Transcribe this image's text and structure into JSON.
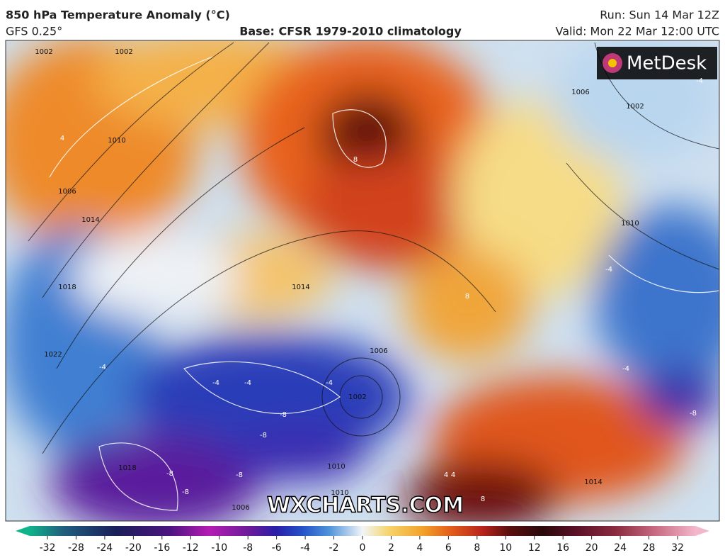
{
  "header": {
    "title": "850 hPa Temperature Anomaly (°C)",
    "model": "GFS 0.25°",
    "base": "Base: CFSR 1979-2010 climatology",
    "run": "Run: Sun 14 Mar 12Z",
    "valid": "Valid: Mon 22 Mar 12:00 UTC"
  },
  "logo": "MetDesk",
  "watermark": "WXCHARTS.COM",
  "map": {
    "isobar_labels": [
      1002,
      1002,
      1010,
      1006,
      1014,
      1018,
      1022,
      1006,
      1002,
      1002,
      1010,
      1014,
      1006,
      1018,
      1010,
      1006,
      1014,
      1010
    ],
    "anomaly_labels": [
      4,
      8,
      8,
      -4,
      -4,
      -4,
      -4,
      -4,
      -8,
      -8,
      -8,
      -8,
      -8,
      -4,
      -4,
      -8,
      4,
      4,
      8
    ]
  },
  "colorbar": {
    "ticks": [
      -32,
      -28,
      -24,
      -20,
      -16,
      -12,
      -10,
      -8,
      -6,
      -4,
      -2,
      0,
      2,
      4,
      6,
      8,
      10,
      12,
      16,
      20,
      24,
      28,
      32
    ]
  }
}
